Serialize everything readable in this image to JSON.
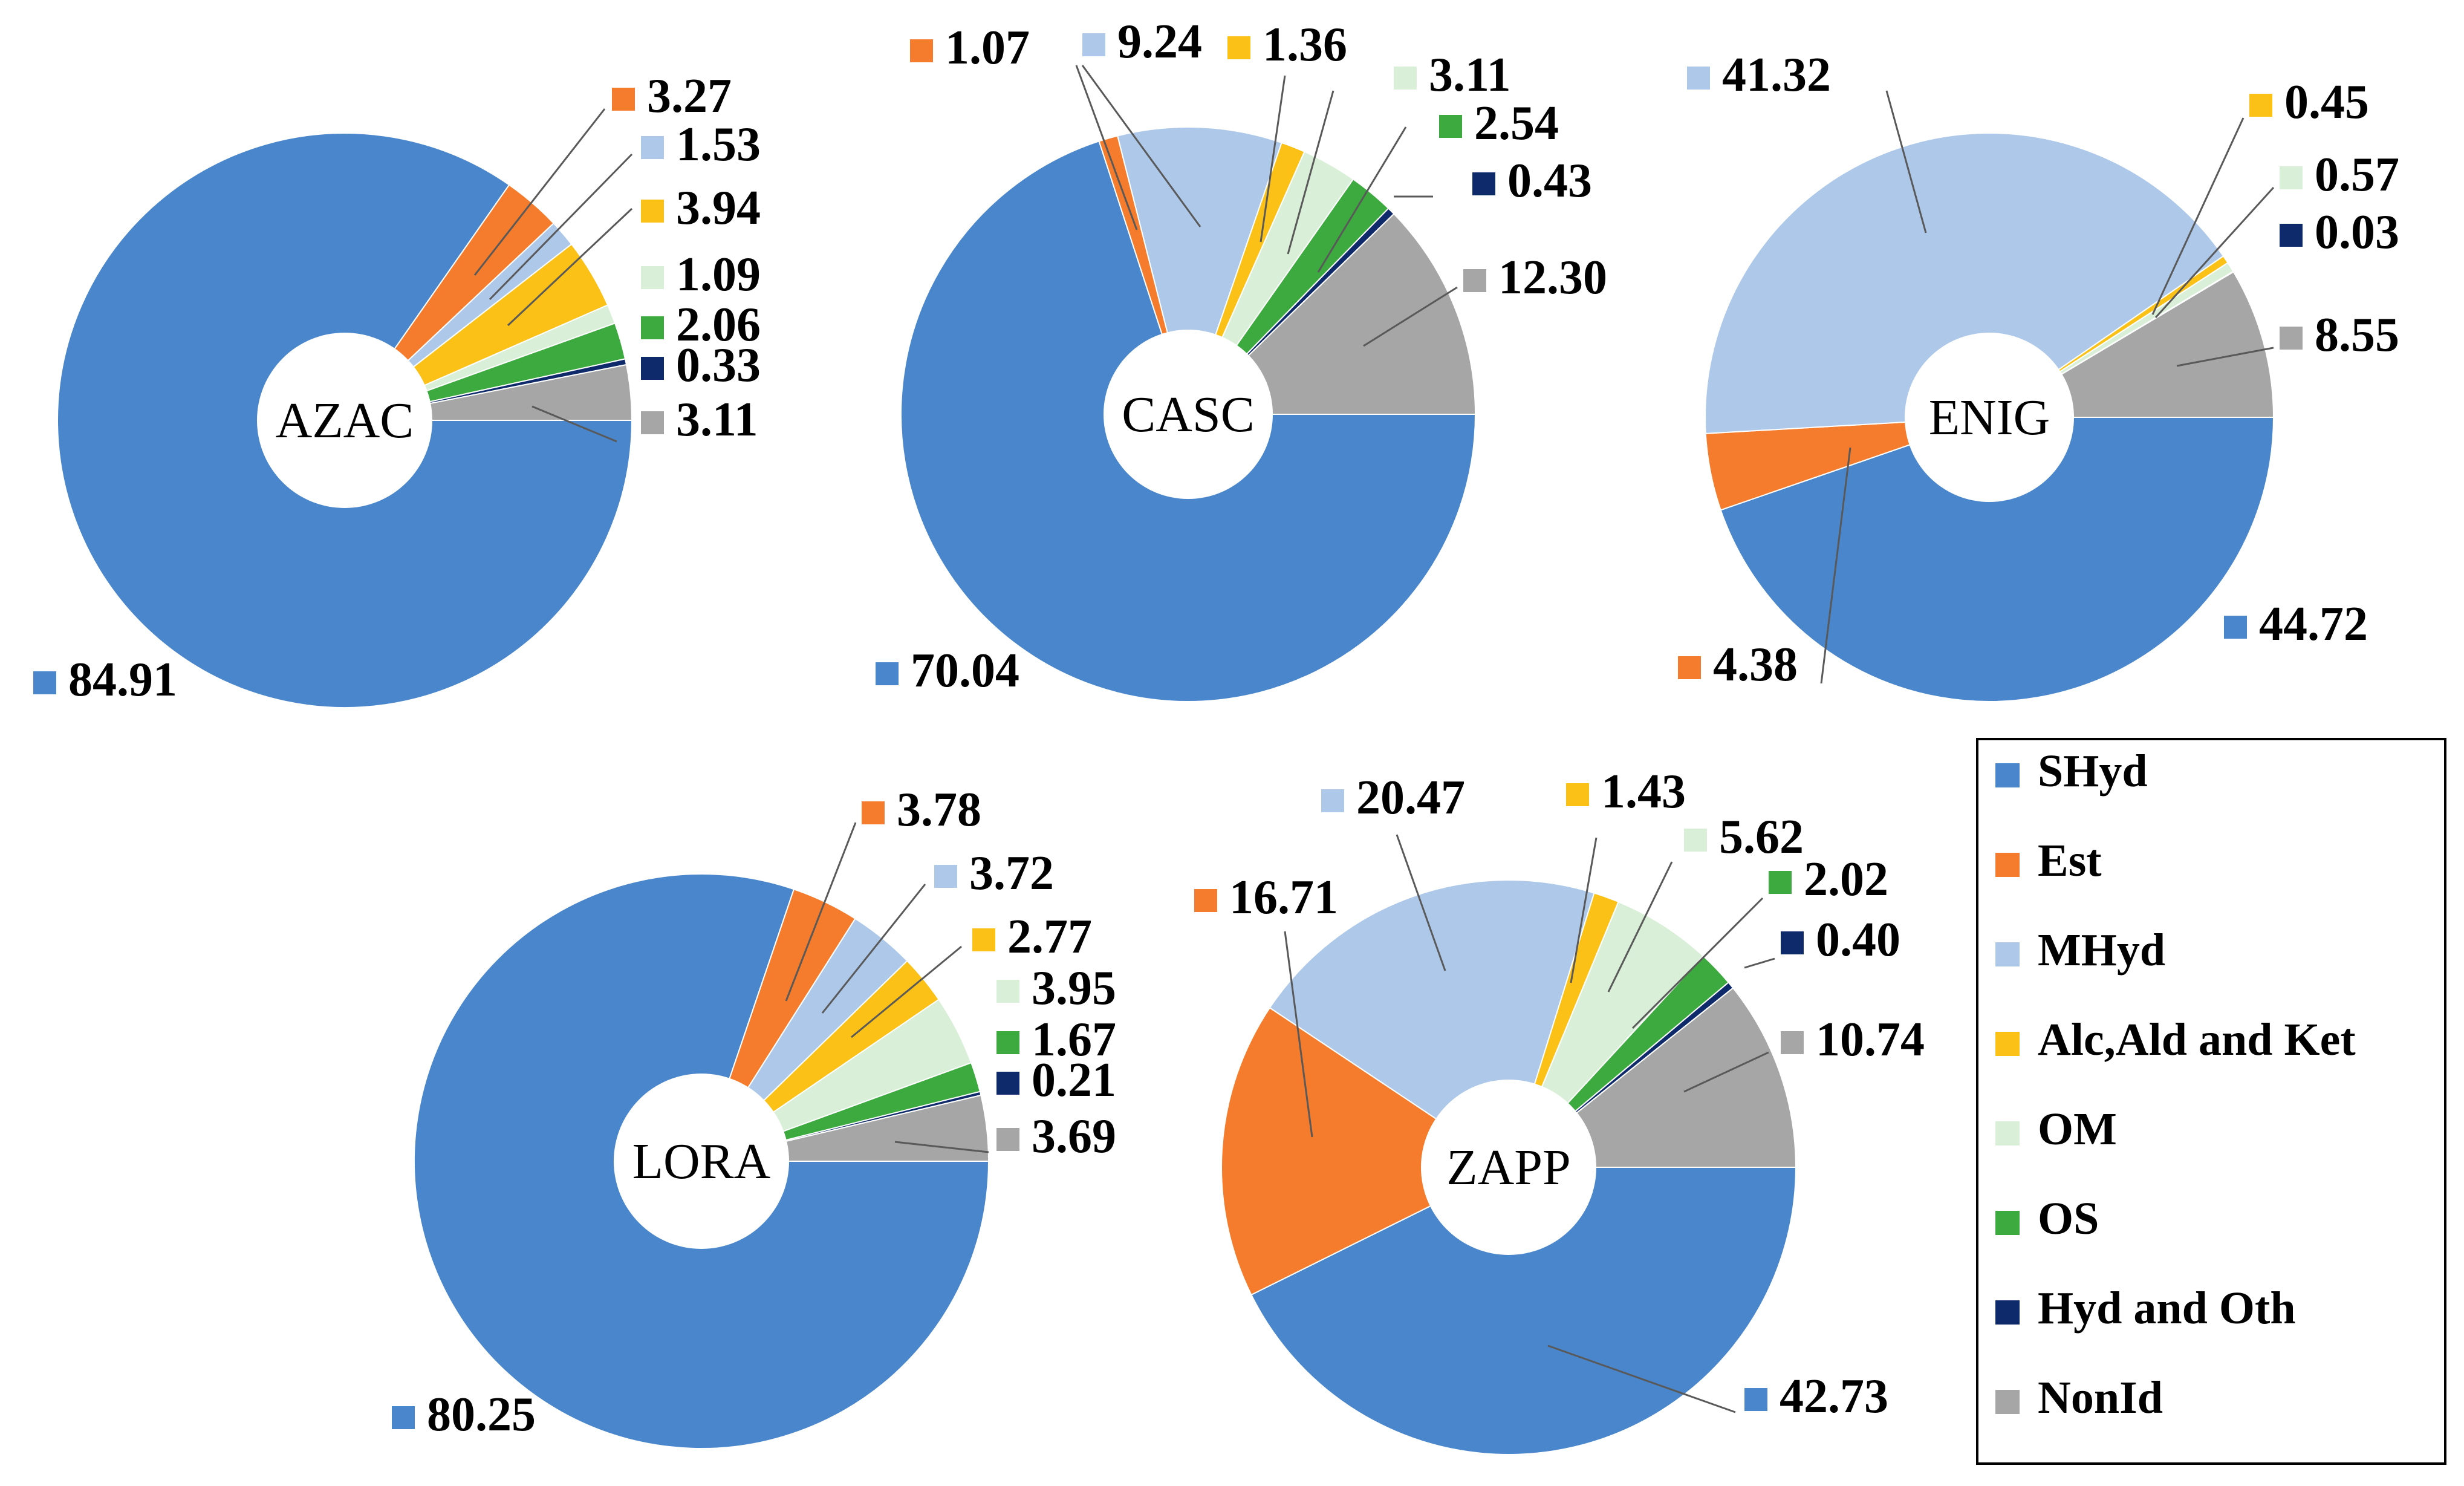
{
  "chart_data": {
    "type": "pie",
    "variant": "donut",
    "categories": [
      "SHyd",
      "Est",
      "MHyd",
      "Alc,Ald and Ket",
      "OM",
      "OS",
      "Hyd and Oth",
      "NonId"
    ],
    "colors": {
      "SHyd": "#4a86cc",
      "Est": "#f47c2c",
      "MHyd": "#aec8ea",
      "Alc,Ald and Ket": "#fbc116",
      "OM": "#d9efd8",
      "OS": "#3daa3f",
      "Hyd and Oth": "#0f2a6b",
      "NonId": "#a6a6a6"
    },
    "legend": {
      "position": "bottom-right",
      "items": [
        "SHyd",
        "Est",
        "MHyd",
        "Alc,Ald and Ket",
        "OM",
        "OS",
        "Hyd and Oth",
        "NonId"
      ]
    },
    "charts": [
      {
        "name": "AZAC",
        "slices": [
          {
            "category": "SHyd",
            "label": "84.91",
            "value": 84.91
          },
          {
            "category": "Est",
            "label": "3.27",
            "value": 3.27
          },
          {
            "category": "MHyd",
            "label": "1.53",
            "value": 1.53
          },
          {
            "category": "Alc,Ald and Ket",
            "label": "3.94",
            "value": 3.94
          },
          {
            "category": "OM",
            "label": "1.09",
            "value": 1.09
          },
          {
            "category": "OS",
            "label": "2.06",
            "value": 2.06
          },
          {
            "category": "Hyd and Oth",
            "label": "0.33",
            "value": 0.33
          },
          {
            "category": "NonId",
            "label": "3.11",
            "value": 3.11
          }
        ]
      },
      {
        "name": "CASC",
        "slices": [
          {
            "category": "SHyd",
            "label": "70.04",
            "value": 70.04
          },
          {
            "category": "Est",
            "label": "1.07",
            "value": 1.07
          },
          {
            "category": "MHyd",
            "label": "9.24",
            "value": 9.24
          },
          {
            "category": "Alc,Ald and Ket",
            "label": "1.36",
            "value": 1.36
          },
          {
            "category": "OM",
            "label": "3.11",
            "value": 3.11
          },
          {
            "category": "OS",
            "label": "2.54",
            "value": 2.54
          },
          {
            "category": "Hyd and Oth",
            "label": "0.43",
            "value": 0.43
          },
          {
            "category": "NonId",
            "label": "12.30",
            "value": 12.3
          }
        ]
      },
      {
        "name": "ENIG",
        "slices": [
          {
            "category": "SHyd",
            "label": "44.72",
            "value": 44.72
          },
          {
            "category": "Est",
            "label": "4.38",
            "value": 4.38
          },
          {
            "category": "MHyd",
            "label": "41.32",
            "value": 41.32
          },
          {
            "category": "Alc,Ald and Ket",
            "label": "0.45",
            "value": 0.45
          },
          {
            "category": "OM",
            "label": "0.57",
            "value": 0.57
          },
          {
            "category": "Hyd and Oth",
            "label": "0.03",
            "value": 0.03
          },
          {
            "category": "NonId",
            "label": "8.55",
            "value": 8.55
          }
        ]
      },
      {
        "name": "LORA",
        "slices": [
          {
            "category": "SHyd",
            "label": "80.25",
            "value": 80.25
          },
          {
            "category": "Est",
            "label": "3.78",
            "value": 3.78
          },
          {
            "category": "MHyd",
            "label": "3.72",
            "value": 3.72
          },
          {
            "category": "Alc,Ald and Ket",
            "label": "2.77",
            "value": 2.77
          },
          {
            "category": "OM",
            "label": "3.95",
            "value": 3.95
          },
          {
            "category": "OS",
            "label": "1.67",
            "value": 1.67
          },
          {
            "category": "Hyd and Oth",
            "label": "0.21",
            "value": 0.21
          },
          {
            "category": "NonId",
            "label": "3.69",
            "value": 3.69
          }
        ]
      },
      {
        "name": "ZAPP",
        "slices": [
          {
            "category": "SHyd",
            "label": "42.73",
            "value": 42.73
          },
          {
            "category": "Est",
            "label": "16.71",
            "value": 16.71
          },
          {
            "category": "MHyd",
            "label": "20.47",
            "value": 20.47
          },
          {
            "category": "Alc,Ald and Ket",
            "label": "1.43",
            "value": 1.43
          },
          {
            "category": "OM",
            "label": "5.62",
            "value": 5.62
          },
          {
            "category": "OS",
            "label": "2.02",
            "value": 2.02
          },
          {
            "category": "Hyd and Oth",
            "label": "0.40",
            "value": 0.4
          },
          {
            "category": "NonId",
            "label": "10.74",
            "value": 10.74
          }
        ]
      }
    ]
  }
}
